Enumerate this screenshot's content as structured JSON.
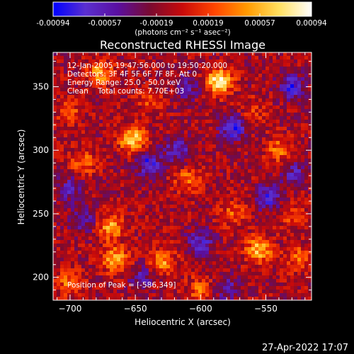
{
  "chart_data": {
    "type": "heatmap",
    "title": "Reconstructed RHESSI Image",
    "xlabel": "Heliocentric X (arcsec)",
    "ylabel": "Heliocentric Y (arcsec)",
    "xlim": [
      -713,
      -515
    ],
    "ylim": [
      182,
      377
    ],
    "xticks": [
      -700,
      -650,
      -600,
      -550
    ],
    "yticks": [
      200,
      250,
      300,
      350
    ],
    "colorbar": {
      "units_label": "(photons cm⁻² s⁻¹ asec⁻²)",
      "min": -0.00094,
      "max": 0.00094,
      "tick_labels": [
        "-0.00094",
        "-0.00057",
        "-0.00019",
        "0.00019",
        "0.00057",
        "0.00094"
      ],
      "colors": [
        "#0000ff",
        "#5a2fd0",
        "#5a0fa0",
        "#7a0a30",
        "#c80a0a",
        "#ff4500",
        "#ff9a00",
        "#ffe060",
        "#ffffff"
      ]
    },
    "annotations": [
      "12-Jan-2005 19:47:56.000 to 19:50:20.000",
      "Detectors: 3F 4F 5F 6F 7F 8F, Att 0",
      "Energy Range: 25.0 - 50.0 keV",
      "Clean    Total counts: 7.70E+03",
      "Position of Peak = [-586,349]"
    ],
    "peak": [
      -586,
      349
    ],
    "hotspots": [
      {
        "x": -586,
        "y": 354,
        "value": 0.00094
      },
      {
        "x": -652,
        "y": 309,
        "value": 0.0008
      },
      {
        "x": -677,
        "y": 361,
        "value": 0.0006
      },
      {
        "x": -669,
        "y": 240,
        "value": 0.0006
      },
      {
        "x": -665,
        "y": 214,
        "value": 0.00065
      },
      {
        "x": -629,
        "y": 212,
        "value": 0.00055
      },
      {
        "x": -555,
        "y": 222,
        "value": 0.0007
      },
      {
        "x": -610,
        "y": 277,
        "value": 0.0004
      },
      {
        "x": -690,
        "y": 290,
        "value": 0.0004
      },
      {
        "x": -540,
        "y": 300,
        "value": 0.00045
      },
      {
        "x": -700,
        "y": 196,
        "value": 0.00045
      },
      {
        "x": -600,
        "y": 190,
        "value": 0.0004
      },
      {
        "x": -575,
        "y": 250,
        "value": 0.00035
      },
      {
        "x": -525,
        "y": 215,
        "value": 0.0004
      },
      {
        "x": -640,
        "y": 340,
        "value": 0.0003
      },
      {
        "x": -700,
        "y": 330,
        "value": 0.0003
      },
      {
        "x": -530,
        "y": 250,
        "value": 0.0003
      },
      {
        "x": -560,
        "y": 330,
        "value": 0.00025
      }
    ],
    "coldspots": [
      {
        "x": -575,
        "y": 318,
        "value": -0.0007
      },
      {
        "x": -530,
        "y": 350,
        "value": -0.0006
      },
      {
        "x": -618,
        "y": 300,
        "value": -0.0005
      },
      {
        "x": -640,
        "y": 290,
        "value": -0.0006
      },
      {
        "x": -548,
        "y": 263,
        "value": -0.0006
      },
      {
        "x": -600,
        "y": 228,
        "value": -0.0005
      },
      {
        "x": -690,
        "y": 245,
        "value": -0.0004
      },
      {
        "x": -700,
        "y": 270,
        "value": -0.0004
      },
      {
        "x": -610,
        "y": 350,
        "value": -0.0004
      },
      {
        "x": -645,
        "y": 200,
        "value": -0.0004
      },
      {
        "x": -580,
        "y": 192,
        "value": -0.0004
      },
      {
        "x": -528,
        "y": 282,
        "value": -0.0004
      }
    ]
  },
  "footer": {
    "timestamp": "27-Apr-2022 17:07"
  }
}
